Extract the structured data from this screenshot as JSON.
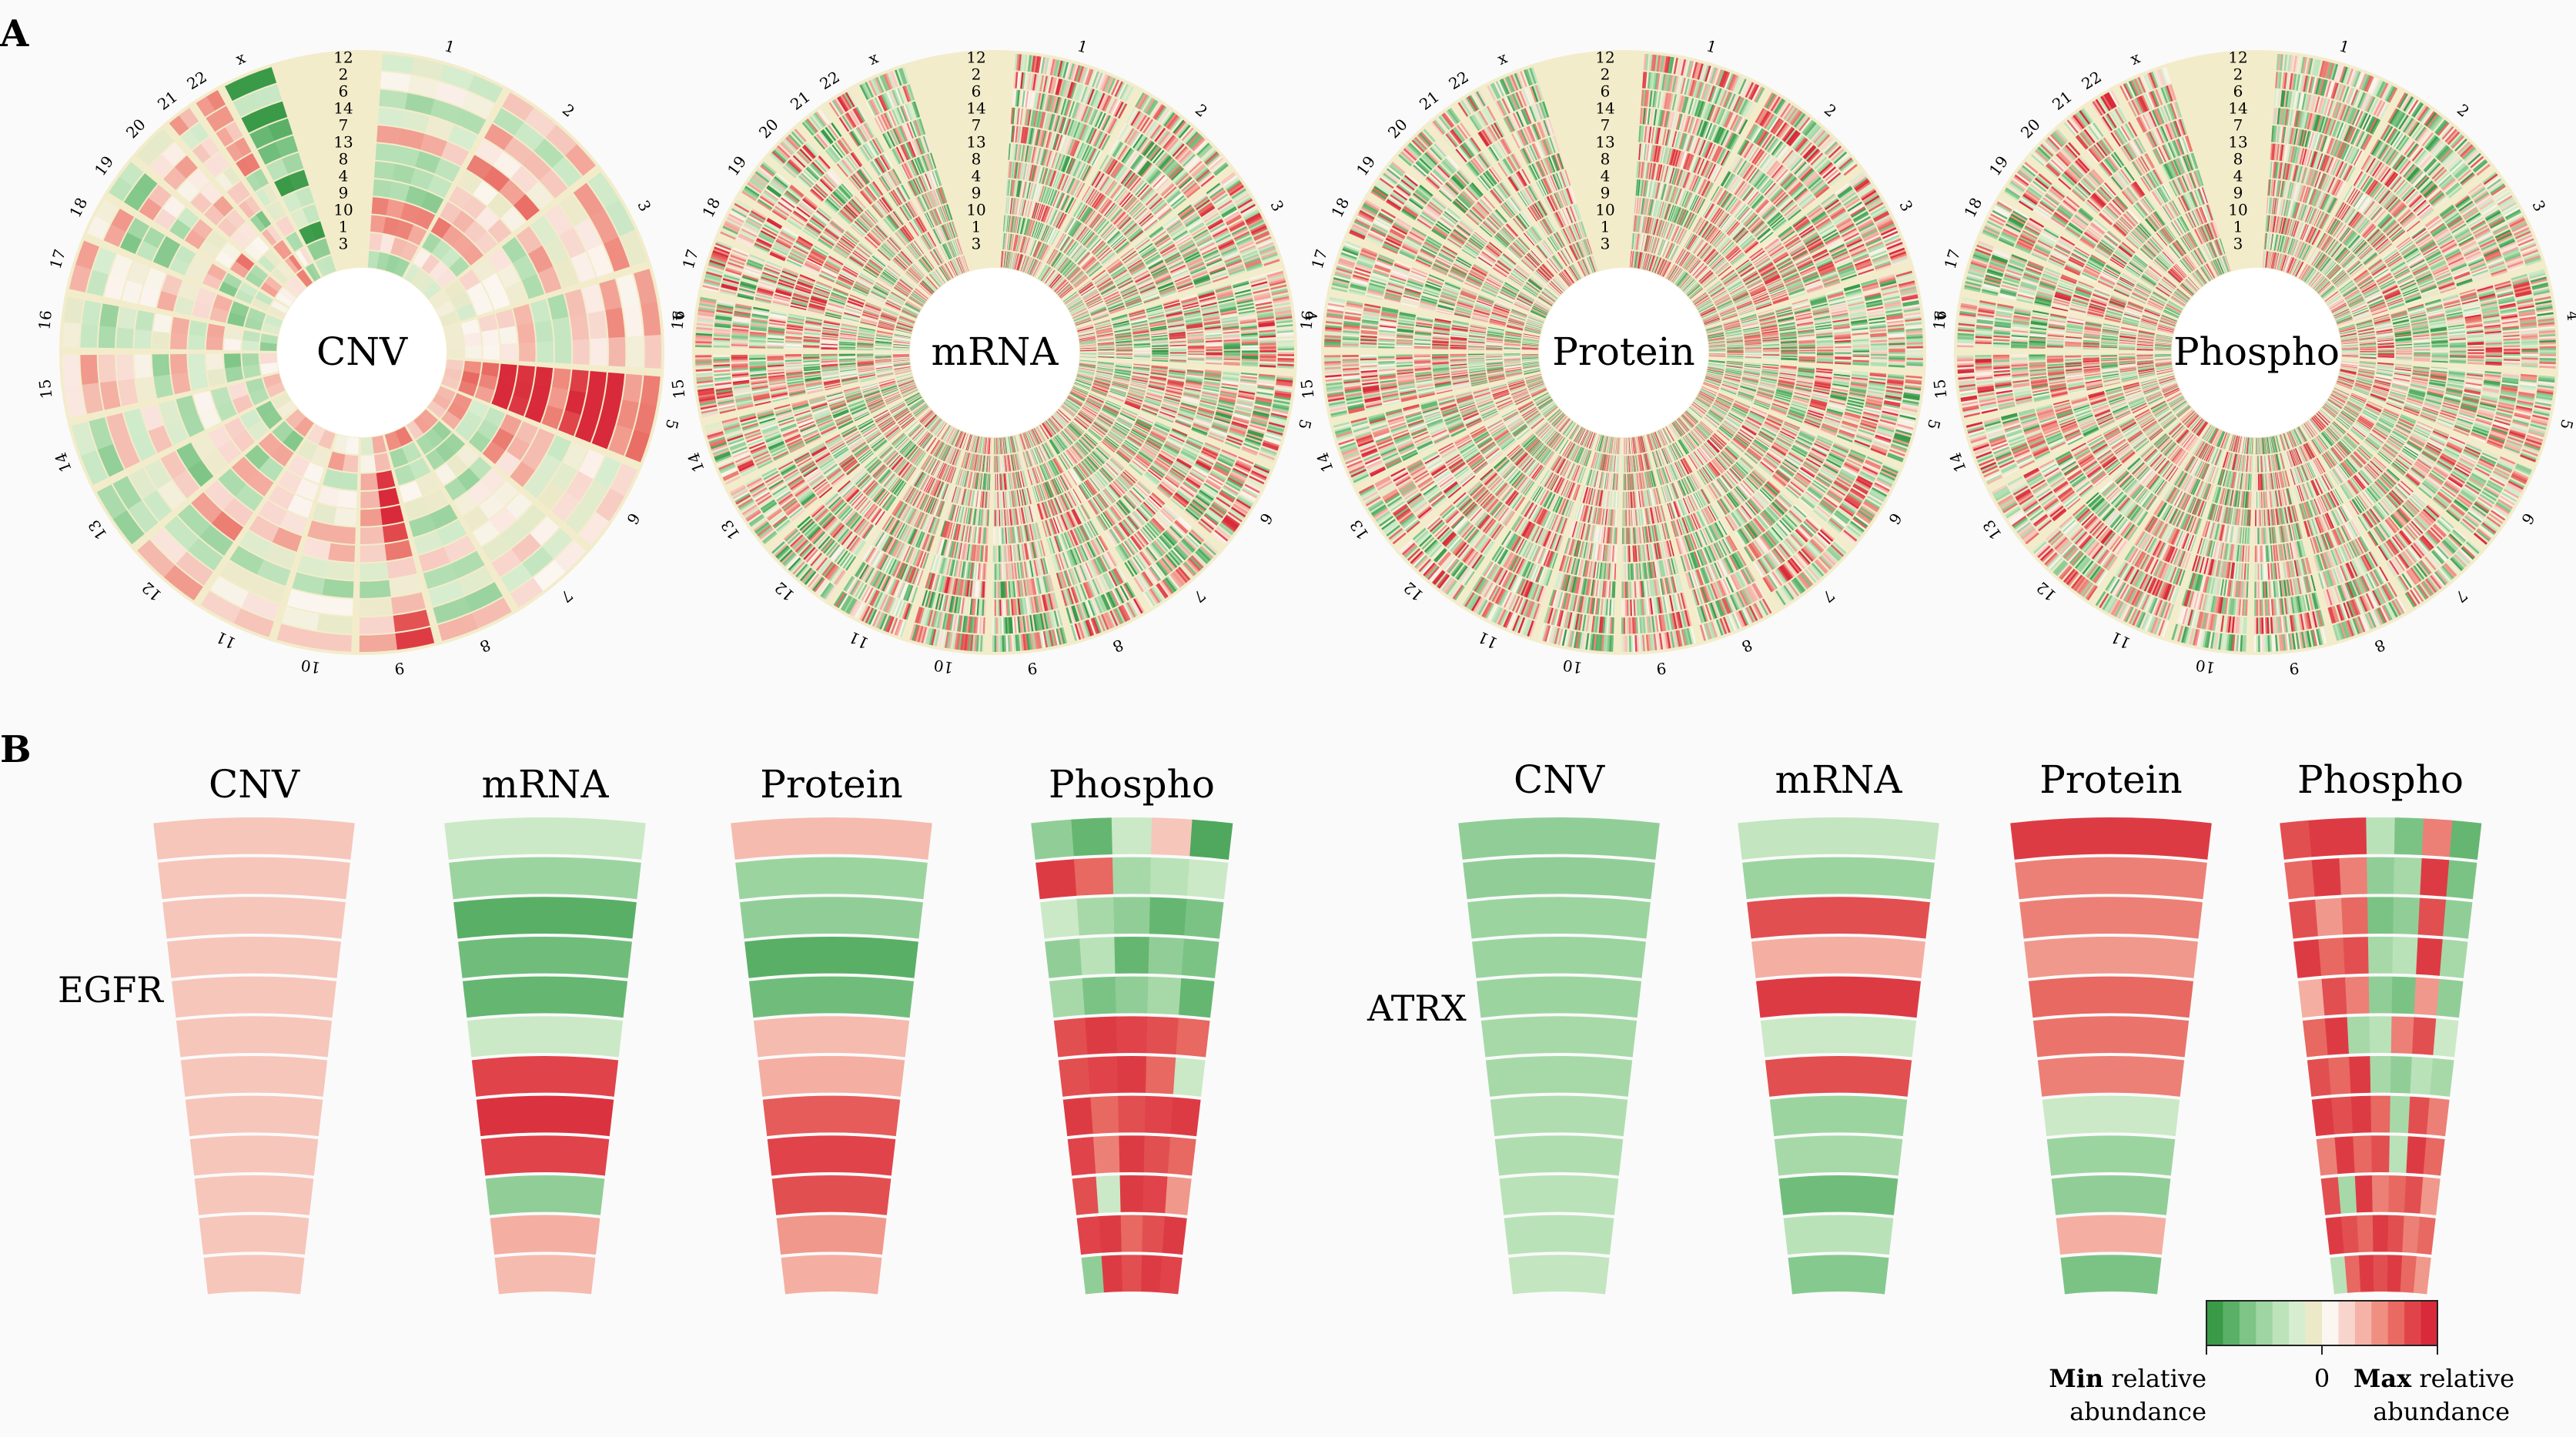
{
  "panels": {
    "a": {
      "letter": "A",
      "chromosomes": [
        "1",
        "2",
        "3",
        "4",
        "5",
        "6",
        "7",
        "8",
        "9",
        "10",
        "11",
        "12",
        "13",
        "14",
        "15",
        "16",
        "17",
        "18",
        "19",
        "20",
        "21",
        "22",
        "x"
      ],
      "sample_order": [
        "12",
        "2",
        "6",
        "14",
        "7",
        "13",
        "8",
        "4",
        "9",
        "10",
        "1",
        "3"
      ],
      "wheels": [
        {
          "label": "CNV",
          "style": "smooth"
        },
        {
          "label": "mRNA",
          "style": "noisy"
        },
        {
          "label": "Protein",
          "style": "noisy"
        },
        {
          "label": "Phospho",
          "style": "noisy"
        }
      ]
    },
    "b": {
      "letter": "B",
      "genes": [
        {
          "name": "EGFR",
          "columns": [
            {
              "label": "CNV",
              "type": "single",
              "values": [
                0.3,
                0.3,
                0.3,
                0.3,
                0.3,
                0.3,
                0.3,
                0.3,
                0.3,
                0.3,
                0.3,
                0.3
              ]
            },
            {
              "label": "mRNA",
              "type": "single",
              "values": [
                -0.3,
                -0.55,
                -0.85,
                -0.75,
                -0.8,
                -0.3,
                0.85,
                0.95,
                0.85,
                -0.6,
                0.4,
                0.35
              ]
            },
            {
              "label": "Protein",
              "type": "single",
              "values": [
                0.35,
                -0.55,
                -0.6,
                -0.85,
                -0.75,
                0.35,
                0.4,
                0.75,
                0.85,
                0.8,
                0.5,
                0.4
              ]
            },
            {
              "label": "Phospho",
              "type": "multi",
              "sites": 5,
              "values": [
                [
                  -0.6,
                  -0.8,
                  -0.3,
                  0.3,
                  -0.9
                ],
                [
                  0.9,
                  0.7,
                  -0.5,
                  -0.4,
                  -0.3
                ],
                [
                  -0.3,
                  -0.5,
                  -0.6,
                  -0.8,
                  -0.7
                ],
                [
                  -0.6,
                  -0.4,
                  -0.8,
                  -0.6,
                  -0.7
                ],
                [
                  -0.5,
                  -0.7,
                  -0.6,
                  -0.5,
                  -0.8
                ],
                [
                  0.8,
                  0.9,
                  0.85,
                  0.8,
                  0.7
                ],
                [
                  0.8,
                  0.85,
                  0.9,
                  0.7,
                  -0.3
                ],
                [
                  0.9,
                  0.7,
                  0.8,
                  0.85,
                  0.9
                ],
                [
                  0.85,
                  0.6,
                  0.9,
                  0.8,
                  0.7
                ],
                [
                  0.8,
                  -0.3,
                  0.9,
                  0.85,
                  0.5
                ],
                [
                  0.85,
                  0.9,
                  0.7,
                  0.8,
                  0.9
                ],
                [
                  -0.6,
                  0.9,
                  0.8,
                  0.9,
                  0.85
                ]
              ]
            }
          ]
        },
        {
          "name": "ATRX",
          "columns": [
            {
              "label": "CNV",
              "type": "single",
              "values": [
                -0.6,
                -0.6,
                -0.55,
                -0.55,
                -0.55,
                -0.5,
                -0.5,
                -0.45,
                -0.45,
                -0.4,
                -0.4,
                -0.35
              ]
            },
            {
              "label": "mRNA",
              "type": "single",
              "values": [
                -0.35,
                -0.55,
                0.8,
                0.4,
                0.9,
                -0.3,
                0.8,
                -0.55,
                -0.5,
                -0.75,
                -0.4,
                -0.65
              ]
            },
            {
              "label": "Protein",
              "type": "single",
              "values": [
                0.9,
                0.6,
                0.6,
                0.5,
                0.7,
                0.65,
                0.6,
                -0.3,
                -0.55,
                -0.6,
                0.4,
                -0.7
              ]
            },
            {
              "label": "Phospho",
              "type": "multi",
              "sites": 7,
              "values": [
                [
                  0.8,
                  0.9,
                  0.9,
                  -0.4,
                  -0.7,
                  0.6,
                  -0.8
                ],
                [
                  0.7,
                  0.9,
                  0.6,
                  -0.6,
                  -0.5,
                  0.9,
                  -0.7
                ],
                [
                  0.8,
                  0.5,
                  0.7,
                  -0.7,
                  -0.6,
                  0.8,
                  -0.6
                ],
                [
                  0.9,
                  0.7,
                  0.8,
                  -0.5,
                  -0.4,
                  0.9,
                  -0.5
                ],
                [
                  0.4,
                  0.8,
                  0.6,
                  -0.6,
                  -0.7,
                  0.5,
                  -0.6
                ],
                [
                  0.7,
                  0.9,
                  -0.5,
                  -0.4,
                  0.6,
                  0.8,
                  -0.3
                ],
                [
                  0.8,
                  0.7,
                  0.9,
                  -0.5,
                  -0.6,
                  -0.4,
                  -0.5
                ],
                [
                  0.9,
                  0.8,
                  0.9,
                  0.7,
                  -0.5,
                  0.8,
                  0.6
                ],
                [
                  0.6,
                  0.9,
                  0.7,
                  0.8,
                  -0.4,
                  0.9,
                  0.7
                ],
                [
                  0.8,
                  -0.5,
                  0.9,
                  0.6,
                  0.7,
                  0.8,
                  0.5
                ],
                [
                  0.9,
                  0.8,
                  0.7,
                  0.9,
                  0.8,
                  0.6,
                  0.7
                ],
                [
                  -0.4,
                  0.7,
                  0.9,
                  0.8,
                  0.9,
                  0.7,
                  0.5
                ]
              ]
            }
          ]
        }
      ]
    }
  },
  "legend": {
    "min_bold": "Min",
    "min_rest": " relative",
    "min_line2": "abundance",
    "zero": "0",
    "max_bold": "Max",
    "max_rest": " relative",
    "max_line2": "abundance",
    "colors": [
      "#3a9a48",
      "#5bb068",
      "#7dc486",
      "#9fd5a2",
      "#bde3bb",
      "#d6edcf",
      "#ece9c9",
      "#fbf6f0",
      "#f8d5cc",
      "#f4b3a6",
      "#ef8f82",
      "#e86a63",
      "#e0444a",
      "#d82a3a"
    ]
  }
}
